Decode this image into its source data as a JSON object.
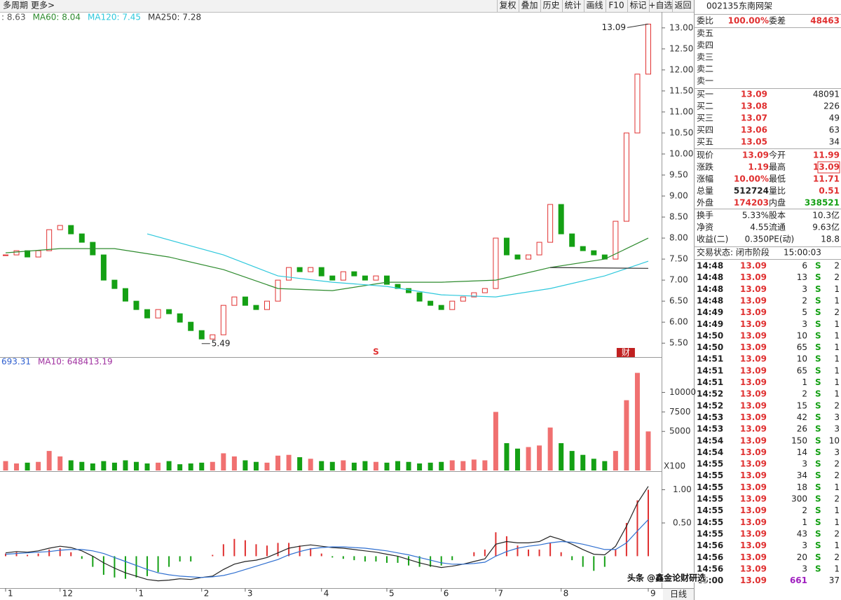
{
  "toolbar": {
    "left": [
      "多周期",
      "更多>"
    ],
    "buttons": [
      "复权",
      "叠加",
      "历史",
      "统计",
      "画线",
      "F10",
      "标记",
      "+自选",
      "返回"
    ]
  },
  "price_chart": {
    "type": "candlestick",
    "legend": [
      {
        "text": ": 8.63",
        "color": "#555555"
      },
      {
        "text": "MA60: 8.04",
        "color": "#2e8b2e"
      },
      {
        "text": "MA120: 7.45",
        "color": "#2ec8dc"
      },
      {
        "text": "MA250: 7.28",
        "color": "#333333"
      }
    ],
    "closes": [
      7.6,
      7.7,
      7.55,
      7.7,
      8.2,
      8.3,
      8.1,
      7.9,
      7.6,
      7.0,
      6.8,
      6.5,
      6.3,
      6.1,
      6.3,
      6.2,
      6.0,
      5.8,
      5.6,
      5.7,
      6.4,
      6.6,
      6.4,
      6.3,
      6.5,
      7.0,
      7.3,
      7.2,
      7.3,
      7.1,
      7.0,
      7.2,
      7.1,
      7.0,
      7.1,
      6.9,
      6.8,
      6.7,
      6.5,
      6.4,
      6.3,
      6.5,
      6.6,
      6.7,
      6.8,
      8.0,
      7.6,
      7.5,
      7.6,
      7.9,
      8.8,
      8.1,
      7.8,
      7.7,
      7.6,
      7.5,
      8.4,
      10.5,
      11.9,
      13.09
    ],
    "up_color": "#e03030",
    "down_color": "#14a014",
    "ma_series": [
      {
        "color": "#2e8b2e",
        "x": [
          0,
          5,
          10,
          15,
          20,
          25,
          30,
          35,
          40,
          45,
          50,
          55,
          59
        ],
        "values": [
          7.65,
          7.75,
          7.75,
          7.55,
          7.25,
          6.8,
          6.75,
          6.95,
          6.95,
          7.0,
          7.3,
          7.5,
          8.0
        ]
      },
      {
        "color": "#2ec8dc",
        "x": [
          13,
          20,
          25,
          30,
          35,
          40,
          45,
          50,
          55,
          59
        ],
        "values": [
          8.1,
          7.6,
          7.1,
          6.95,
          6.85,
          6.65,
          6.6,
          6.8,
          7.1,
          7.45
        ]
      },
      {
        "color": "#333333",
        "x": [
          50,
          59
        ],
        "values": [
          7.3,
          7.28
        ]
      }
    ],
    "high": {
      "index": 59,
      "value": 13.09
    },
    "low": {
      "index": 18,
      "value": 5.49
    },
    "marker": {
      "index": 34,
      "label": "S"
    },
    "badge": {
      "index": 57,
      "label": "财"
    },
    "ylim": [
      5.17,
      13.38
    ],
    "yticks": [
      {
        "value": 5.5,
        "label": "5.50"
      },
      {
        "value": 6,
        "label": "6.00"
      },
      {
        "value": 6.5,
        "label": "6.50"
      },
      {
        "value": 7,
        "label": "7.00"
      },
      {
        "value": 7.5,
        "label": "7.50"
      },
      {
        "value": 8,
        "label": "8.00"
      },
      {
        "value": 8.5,
        "label": "8.50"
      },
      {
        "value": 9,
        "label": "9.00"
      },
      {
        "value": 9.5,
        "label": "9.50"
      },
      {
        "value": 10,
        "label": "10.00"
      },
      {
        "value": 10.5,
        "label": "10.50"
      },
      {
        "value": 11,
        "label": "11.00"
      },
      {
        "value": 11.5,
        "label": "11.50"
      },
      {
        "value": 12,
        "label": "12.00"
      },
      {
        "value": 12.5,
        "label": "12.50"
      },
      {
        "value": 13,
        "label": "13.00"
      }
    ]
  },
  "volume_chart": {
    "type": "bar",
    "legend": [
      {
        "text": "693.31",
        "color": "#3060d0"
      },
      {
        "text": "MA10: 648413.19",
        "color": "#a030a0"
      }
    ],
    "values": [
      1200,
      900,
      1000,
      1100,
      2500,
      1800,
      1300,
      1100,
      900,
      1200,
      1000,
      1300,
      1100,
      900,
      1000,
      1200,
      800,
      900,
      1000,
      1100,
      2200,
      1800,
      1300,
      1100,
      1000,
      1900,
      2000,
      1700,
      1500,
      1200,
      1100,
      1300,
      1000,
      1200,
      1100,
      1000,
      1200,
      1100,
      900,
      1000,
      1100,
      1300,
      1200,
      1400,
      1300,
      7500,
      3500,
      2800,
      3000,
      3200,
      5500,
      3500,
      2500,
      2000,
      1500,
      1200,
      2500,
      9000,
      12500,
      5000
    ],
    "unit_label": "X100",
    "ylim": [
      0,
      13000
    ],
    "yticks": [
      5000,
      7500,
      10000
    ]
  },
  "macd_chart": {
    "type": "macd",
    "dif": [
      0.05,
      0.07,
      0.06,
      0.08,
      0.12,
      0.15,
      0.13,
      0.08,
      0.0,
      -0.1,
      -0.18,
      -0.25,
      -0.3,
      -0.35,
      -0.37,
      -0.36,
      -0.34,
      -0.35,
      -0.32,
      -0.3,
      -0.2,
      -0.12,
      -0.08,
      -0.06,
      -0.02,
      0.05,
      0.12,
      0.15,
      0.17,
      0.15,
      0.13,
      0.12,
      0.1,
      0.08,
      0.06,
      0.03,
      0.0,
      -0.05,
      -0.1,
      -0.14,
      -0.17,
      -0.15,
      -0.12,
      -0.08,
      -0.04,
      0.18,
      0.22,
      0.2,
      0.2,
      0.22,
      0.3,
      0.25,
      0.18,
      0.1,
      0.03,
      0.02,
      0.15,
      0.45,
      0.8,
      1.05
    ],
    "dea": [
      0.03,
      0.04,
      0.05,
      0.06,
      0.07,
      0.09,
      0.1,
      0.1,
      0.08,
      0.04,
      -0.02,
      -0.08,
      -0.14,
      -0.2,
      -0.25,
      -0.28,
      -0.3,
      -0.31,
      -0.32,
      -0.31,
      -0.29,
      -0.25,
      -0.2,
      -0.15,
      -0.1,
      -0.05,
      0.02,
      0.07,
      0.11,
      0.13,
      0.14,
      0.14,
      0.13,
      0.12,
      0.1,
      0.08,
      0.05,
      0.02,
      -0.02,
      -0.06,
      -0.1,
      -0.12,
      -0.12,
      -0.11,
      -0.09,
      0.0,
      0.07,
      0.12,
      0.15,
      0.17,
      0.2,
      0.22,
      0.21,
      0.18,
      0.14,
      0.1,
      0.1,
      0.2,
      0.38,
      0.55
    ],
    "hist": [
      0.04,
      0.06,
      0.02,
      0.04,
      0.1,
      0.12,
      0.06,
      -0.04,
      -0.16,
      -0.28,
      -0.32,
      -0.34,
      -0.32,
      -0.3,
      -0.24,
      -0.16,
      -0.08,
      -0.08,
      0,
      0.02,
      0.18,
      0.26,
      0.24,
      0.18,
      0.16,
      0.2,
      0.2,
      0.16,
      0.12,
      0.04,
      -0.02,
      -0.04,
      -0.06,
      -0.08,
      -0.08,
      -0.1,
      -0.1,
      -0.14,
      -0.16,
      -0.16,
      -0.14,
      -0.06,
      0,
      0.06,
      0.1,
      0.36,
      0.3,
      0.16,
      0.1,
      0.1,
      0.2,
      0.06,
      -0.06,
      -0.16,
      -0.22,
      -0.16,
      0.1,
      0.5,
      0.84,
      1.0
    ],
    "ylim": [
      -0.48,
      1.1
    ],
    "yticks": [
      {
        "value": 0.5,
        "label": "0.50"
      },
      {
        "value": 1,
        "label": "1.00"
      }
    ]
  },
  "x_axis": {
    "labels": [
      "1",
      "12",
      "1",
      "2",
      "3",
      "4",
      "5",
      "6",
      "7",
      "8",
      "9"
    ],
    "indices": [
      0,
      5,
      12,
      18,
      22,
      29,
      35,
      40,
      45,
      51,
      59
    ],
    "period": "日线"
  },
  "quote_panel": {
    "code": "002135",
    "name": "东南网架",
    "weibi": {
      "label": "委比",
      "value": "100.00%",
      "label2": "委差",
      "value2": "48463"
    },
    "sell_levels": [
      "卖五",
      "卖四",
      "卖三",
      "卖二",
      "卖一"
    ],
    "buy_levels": [
      {
        "label": "买一",
        "price": "13.09",
        "volume": "48091"
      },
      {
        "label": "买二",
        "price": "13.08",
        "volume": "226"
      },
      {
        "label": "买三",
        "price": "13.07",
        "volume": "49"
      },
      {
        "label": "买四",
        "price": "13.06",
        "volume": "63"
      },
      {
        "label": "买五",
        "price": "13.05",
        "volume": "34"
      }
    ],
    "stats": [
      {
        "label": "现价",
        "value": "13.09",
        "label2": "今开",
        "value2": "11.99"
      },
      {
        "label": "涨跌",
        "value": "1.19",
        "label2": "最高",
        "value2": "13.09"
      },
      {
        "label": "涨幅",
        "value": "10.00%",
        "label2": "最低",
        "value2": "11.71"
      },
      {
        "label": "总量",
        "value": "512724",
        "label2": "量比",
        "value2": "0.51"
      },
      {
        "label": "外盘",
        "value": "174203",
        "label2": "内盘",
        "value2": "338521"
      }
    ],
    "fundamentals": [
      {
        "label": "换手",
        "value": "5.33%",
        "label2": "股本",
        "value2": "10.3亿"
      },
      {
        "label": "净资",
        "value": "4.55",
        "label2": "流通",
        "value2": "9.63亿"
      },
      {
        "label": "收益(二)",
        "value": "0.350",
        "label2": "PE(动)",
        "value2": "18.8"
      }
    ],
    "status": "交易状态: 闭市阶段",
    "status_time": "15:00:03"
  },
  "trades": [
    {
      "time": "14:48",
      "price": "13.09",
      "volume": "6",
      "side": "S",
      "count": "2"
    },
    {
      "time": "14:48",
      "price": "13.09",
      "volume": "13",
      "side": "S",
      "count": "2"
    },
    {
      "time": "14:48",
      "price": "13.09",
      "volume": "3",
      "side": "S",
      "count": "1"
    },
    {
      "time": "14:48",
      "price": "13.09",
      "volume": "2",
      "side": "S",
      "count": "1"
    },
    {
      "time": "14:49",
      "price": "13.09",
      "volume": "5",
      "side": "S",
      "count": "2"
    },
    {
      "time": "14:49",
      "price": "13.09",
      "volume": "3",
      "side": "S",
      "count": "1"
    },
    {
      "time": "14:50",
      "price": "13.09",
      "volume": "10",
      "side": "S",
      "count": "1"
    },
    {
      "time": "14:50",
      "price": "13.09",
      "volume": "65",
      "side": "S",
      "count": "1"
    },
    {
      "time": "14:51",
      "price": "13.09",
      "volume": "10",
      "side": "S",
      "count": "1"
    },
    {
      "time": "14:51",
      "price": "13.09",
      "volume": "65",
      "side": "S",
      "count": "1"
    },
    {
      "time": "14:51",
      "price": "13.09",
      "volume": "1",
      "side": "S",
      "count": "1"
    },
    {
      "time": "14:52",
      "price": "13.09",
      "volume": "2",
      "side": "S",
      "count": "1"
    },
    {
      "time": "14:52",
      "price": "13.09",
      "volume": "15",
      "side": "S",
      "count": "2"
    },
    {
      "time": "14:53",
      "price": "13.09",
      "volume": "42",
      "side": "S",
      "count": "3"
    },
    {
      "time": "14:53",
      "price": "13.09",
      "volume": "26",
      "side": "S",
      "count": "3"
    },
    {
      "time": "14:54",
      "price": "13.09",
      "volume": "150",
      "side": "S",
      "count": "10"
    },
    {
      "time": "14:54",
      "price": "13.09",
      "volume": "14",
      "side": "S",
      "count": "3"
    },
    {
      "time": "14:55",
      "price": "13.09",
      "volume": "3",
      "side": "S",
      "count": "2"
    },
    {
      "time": "14:55",
      "price": "13.09",
      "volume": "34",
      "side": "S",
      "count": "2"
    },
    {
      "time": "14:55",
      "price": "13.09",
      "volume": "18",
      "side": "S",
      "count": "1"
    },
    {
      "time": "14:55",
      "price": "13.09",
      "volume": "300",
      "side": "S",
      "count": "2"
    },
    {
      "time": "14:55",
      "price": "13.09",
      "volume": "2",
      "side": "S",
      "count": "1"
    },
    {
      "time": "14:55",
      "price": "13.09",
      "volume": "1",
      "side": "S",
      "count": "1"
    },
    {
      "time": "14:55",
      "price": "13.09",
      "volume": "43",
      "side": "S",
      "count": "2"
    },
    {
      "time": "14:56",
      "price": "13.09",
      "volume": "3",
      "side": "S",
      "count": "1"
    },
    {
      "time": "14:56",
      "price": "13.09",
      "volume": "20",
      "side": "S",
      "count": "2"
    },
    {
      "time": "14:56",
      "price": "13.09",
      "volume": "3",
      "side": "S",
      "count": "1"
    },
    {
      "time": "15:00",
      "price": "13.09",
      "volume": "661",
      "count": "37"
    }
  ],
  "watermark": "头条 @鑫金论财研选"
}
